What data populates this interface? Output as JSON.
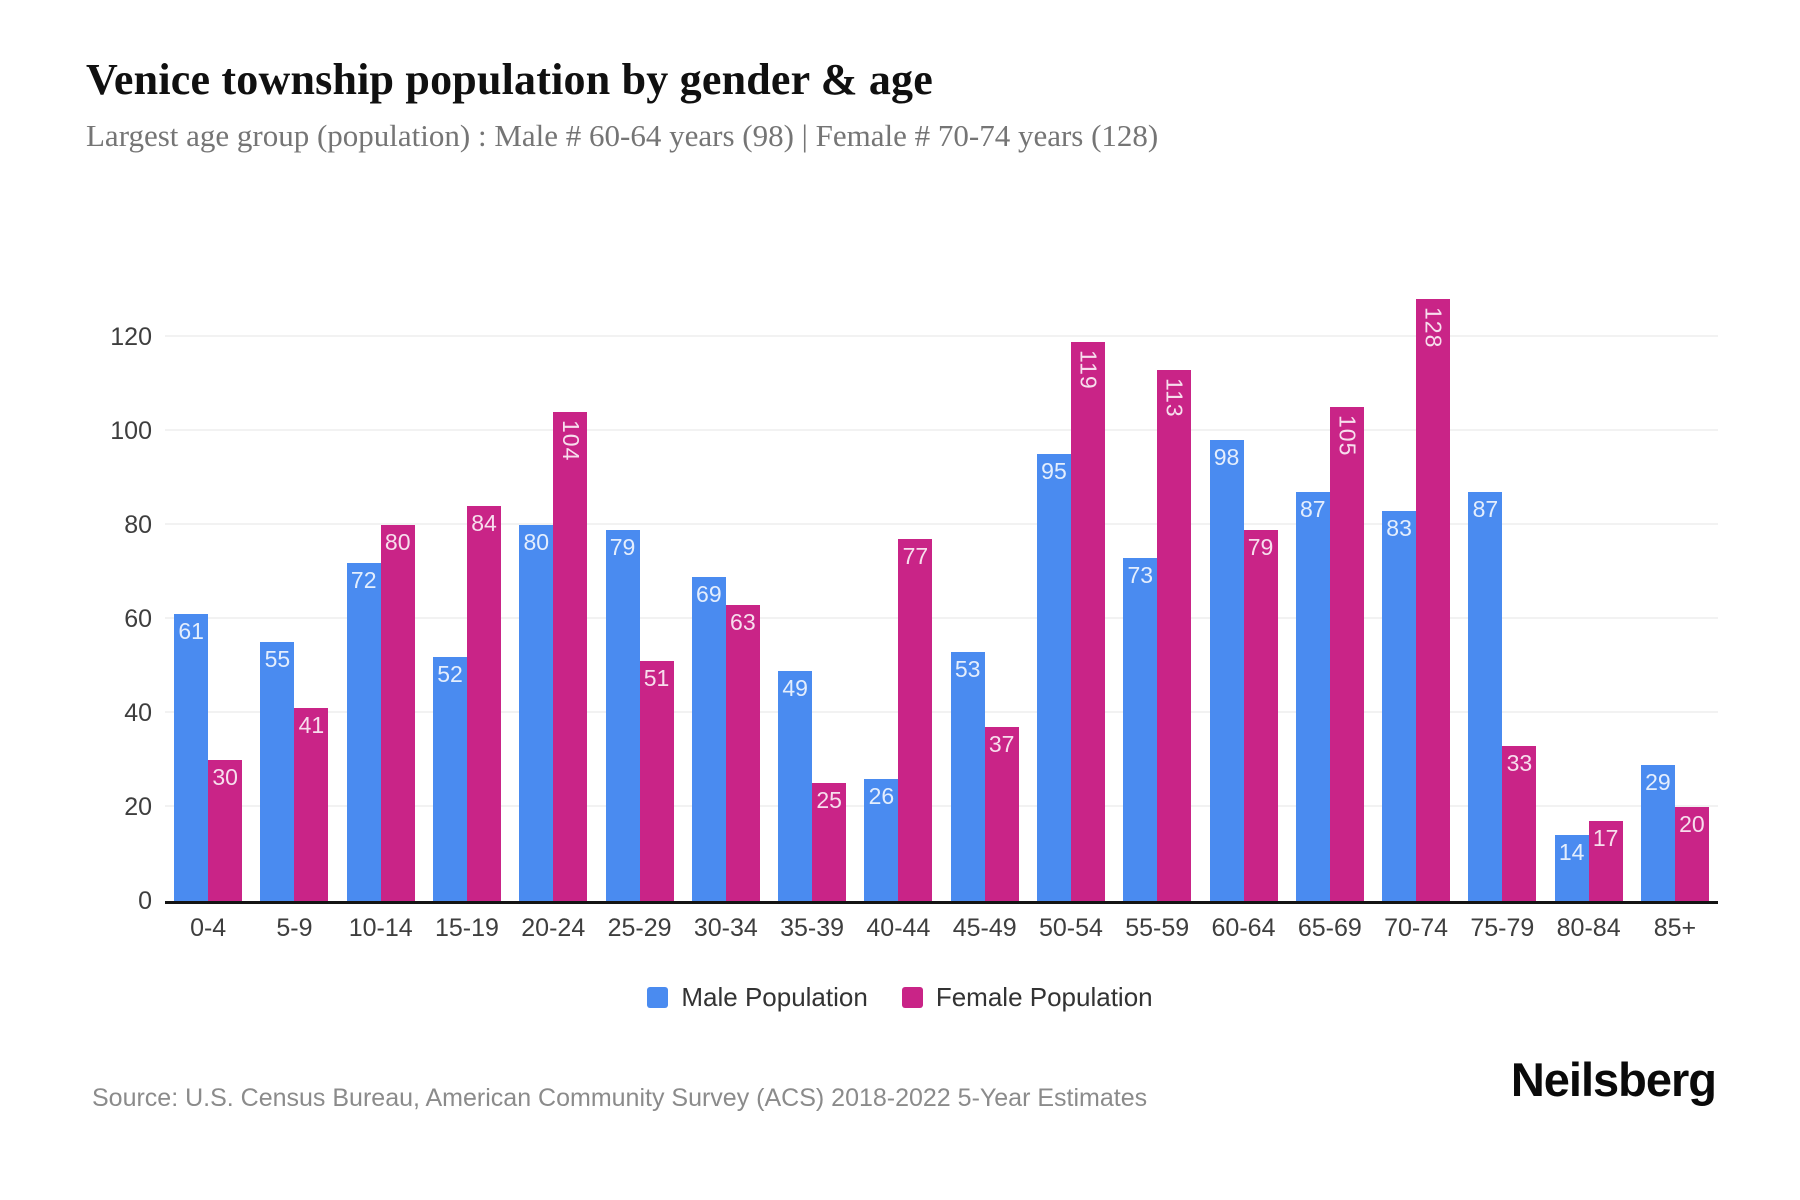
{
  "title": "Venice township population by gender & age",
  "subtitle": "Largest age group (population) : Male # 60-64 years (98) | Female # 70-74 years (128)",
  "source": "Source: U.S. Census Bureau, American Community Survey (ACS) 2018-2022 5-Year Estimates",
  "brand": "Neilsberg",
  "colors": {
    "male": "#4A8BF0",
    "female": "#C92487",
    "axis": "#141414",
    "grid": "#f2f2f2"
  },
  "legend": [
    {
      "label": "Male Population",
      "color": "#4A8BF0"
    },
    {
      "label": "Female Population",
      "color": "#C92487"
    }
  ],
  "chart_data": {
    "type": "bar",
    "title": "Venice township population by gender & age",
    "subtitle": "Largest age group (population) : Male # 60-64 years (98) | Female # 70-74 years (128)",
    "categories": [
      "0-4",
      "5-9",
      "10-14",
      "15-19",
      "20-24",
      "25-29",
      "30-34",
      "35-39",
      "40-44",
      "45-49",
      "50-54",
      "55-59",
      "60-64",
      "65-69",
      "70-74",
      "75-79",
      "80-84",
      "85+"
    ],
    "series": [
      {
        "name": "Male Population",
        "color": "#4A8BF0",
        "values": [
          61,
          55,
          72,
          52,
          80,
          79,
          69,
          49,
          26,
          53,
          95,
          73,
          98,
          87,
          83,
          87,
          14,
          29
        ]
      },
      {
        "name": "Female Population",
        "color": "#C92487",
        "values": [
          30,
          41,
          80,
          84,
          104,
          51,
          63,
          25,
          77,
          37,
          119,
          113,
          79,
          105,
          128,
          33,
          17,
          20
        ]
      }
    ],
    "xlabel": "",
    "ylabel": "",
    "ylim": [
      0,
      140
    ],
    "yticks": [
      0,
      20,
      40,
      60,
      80,
      100,
      120
    ],
    "grid": true,
    "legend_position": "bottom",
    "bar_labels": "inside-top, rotated vertically when value >= 100"
  }
}
